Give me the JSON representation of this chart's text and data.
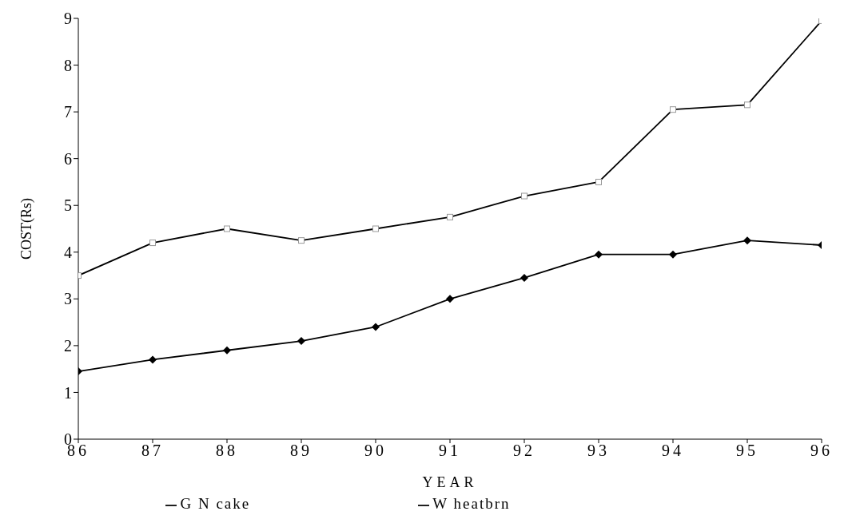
{
  "chart_data": {
    "type": "line",
    "xlabel": "YEAR",
    "ylabel": "COST(Rs)",
    "x": [
      86,
      87,
      88,
      89,
      90,
      91,
      92,
      93,
      94,
      95,
      96
    ],
    "xlim": [
      86,
      96
    ],
    "xticks": [
      86,
      87,
      88,
      89,
      90,
      91,
      92,
      93,
      94,
      95,
      96
    ],
    "ylim": [
      0,
      9
    ],
    "yticks": [
      0,
      1,
      2,
      3,
      4,
      5,
      6,
      7,
      8,
      9
    ],
    "grid": false,
    "legend": "bottom",
    "series": [
      {
        "name": "W heatbrn",
        "color": "#000000",
        "marker": "diamond",
        "values": [
          1.45,
          1.7,
          1.9,
          2.1,
          2.4,
          3.0,
          3.45,
          3.95,
          3.95,
          4.25,
          4.15
        ]
      },
      {
        "name": "G N cake",
        "color": "#000000",
        "marker": "square",
        "values": [
          3.5,
          4.2,
          4.5,
          4.25,
          4.5,
          4.75,
          5.2,
          5.5,
          7.05,
          7.15,
          8.95
        ]
      }
    ]
  }
}
